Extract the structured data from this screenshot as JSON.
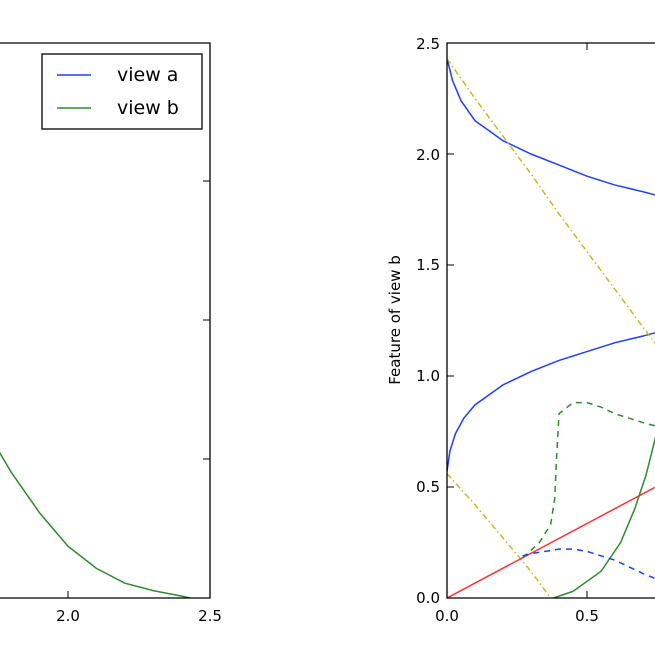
{
  "chart_data": [
    {
      "type": "line",
      "title": "",
      "xlabel": "",
      "ylabel": "",
      "xlim": [
        1.5,
        2.5
      ],
      "x_ticks": [
        "2.0",
        "2.5"
      ],
      "grid": false,
      "legend": {
        "placement": "top-right",
        "entries": [
          {
            "label": "view a",
            "color": "#1f3fff"
          },
          {
            "label": "view b",
            "color": "#2e8b2e"
          }
        ]
      },
      "series": [
        {
          "name": "view b",
          "color": "#2e8b2e",
          "style": "solid",
          "x": [
            1.5,
            1.6,
            1.7,
            1.8,
            1.9,
            2.0,
            2.1,
            2.2,
            2.3,
            2.4,
            2.43
          ],
          "y": [
            0.75,
            0.61,
            0.47,
            0.34,
            0.23,
            0.14,
            0.08,
            0.04,
            0.02,
            0.005,
            0.0
          ]
        }
      ]
    },
    {
      "type": "line",
      "title": "",
      "xlabel": "",
      "ylabel": "Feature of view b",
      "xlim": [
        0.0,
        0.75
      ],
      "ylim": [
        0.0,
        2.5
      ],
      "x_ticks": [
        "0.0",
        "0.5"
      ],
      "y_ticks": [
        "0.0",
        "0.5",
        "1.0",
        "1.5",
        "2.0",
        "2.5"
      ],
      "grid": false,
      "series": [
        {
          "color": "#1f3fff",
          "style": "solid",
          "x": [
            0.0,
            0.02,
            0.05,
            0.1,
            0.2,
            0.3,
            0.4,
            0.5,
            0.6,
            0.7,
            0.76
          ],
          "y": [
            2.43,
            2.33,
            2.24,
            2.15,
            2.06,
            2.0,
            1.95,
            1.9,
            1.86,
            1.83,
            1.81
          ]
        },
        {
          "color": "#1f3fff",
          "style": "solid",
          "x": [
            0.0,
            0.01,
            0.03,
            0.06,
            0.1,
            0.2,
            0.3,
            0.4,
            0.5,
            0.6,
            0.7,
            0.76
          ],
          "y": [
            0.57,
            0.66,
            0.74,
            0.81,
            0.87,
            0.96,
            1.02,
            1.07,
            1.11,
            1.15,
            1.18,
            1.2
          ]
        },
        {
          "color": "#bcbd22",
          "style": "dashdot",
          "x": [
            0.0,
            0.1,
            0.2,
            0.3,
            0.4,
            0.5,
            0.6,
            0.7,
            0.76
          ],
          "y": [
            2.43,
            2.25,
            2.08,
            1.91,
            1.73,
            1.56,
            1.39,
            1.22,
            1.12
          ]
        },
        {
          "color": "#bcbd22",
          "style": "dashdot",
          "x": [
            0.0,
            0.1,
            0.2,
            0.3,
            0.37
          ],
          "y": [
            0.56,
            0.42,
            0.27,
            0.12,
            0.0
          ]
        },
        {
          "color": "#ff3030",
          "style": "solid",
          "x": [
            0.0,
            0.76
          ],
          "y": [
            0.0,
            0.51
          ]
        },
        {
          "color": "#2e8b2e",
          "style": "solid",
          "x": [
            0.38,
            0.45,
            0.55,
            0.62,
            0.67,
            0.71,
            0.74,
            0.76
          ],
          "y": [
            0.0,
            0.03,
            0.12,
            0.25,
            0.4,
            0.55,
            0.7,
            0.8
          ]
        },
        {
          "color": "#2e8b2e",
          "style": "dashed",
          "x": [
            0.27,
            0.33,
            0.37,
            0.385,
            0.39,
            0.4,
            0.45,
            0.5,
            0.55,
            0.6,
            0.65,
            0.7,
            0.76
          ],
          "y": [
            0.18,
            0.25,
            0.33,
            0.45,
            0.6,
            0.83,
            0.88,
            0.88,
            0.86,
            0.83,
            0.81,
            0.79,
            0.77
          ]
        },
        {
          "color": "#1f3fff",
          "style": "dashed",
          "x": [
            0.27,
            0.3,
            0.35,
            0.4,
            0.45,
            0.5,
            0.55,
            0.6,
            0.65,
            0.7,
            0.76
          ],
          "y": [
            0.19,
            0.2,
            0.21,
            0.22,
            0.22,
            0.21,
            0.19,
            0.17,
            0.14,
            0.11,
            0.08
          ]
        }
      ]
    }
  ]
}
